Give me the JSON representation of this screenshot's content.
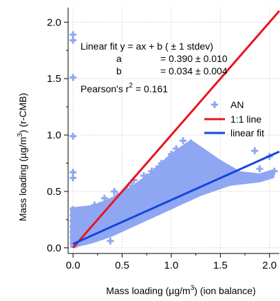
{
  "chart_data": {
    "type": "scatter",
    "xlabel_parts": [
      "Mass loading (µg/m",
      "3",
      ") (ion balance)"
    ],
    "ylabel_parts": [
      "Mass loading (µg/m",
      "3",
      ") (r-CMB)"
    ],
    "xlim": [
      -0.05,
      2.1
    ],
    "ylim": [
      -0.05,
      2.13
    ],
    "x_ticks": [
      0.0,
      0.5,
      1.0,
      1.5,
      2.0
    ],
    "x_tick_labels": [
      "0.0",
      "0.5",
      "1.0",
      "1.5",
      "2.0"
    ],
    "y_ticks": [
      0.0,
      0.5,
      1.0,
      1.5,
      2.0
    ],
    "y_tick_labels": [
      "0.0",
      "0.5",
      "1.0",
      "1.5",
      "2.0"
    ],
    "grid": true,
    "legend_position": "right",
    "annotation": {
      "line1": "Linear fit y = ax + b  ( ± 1 stdev)",
      "a_name": "a",
      "a_value": "= 0.390 ± 0.010",
      "b_name": "b",
      "b_value": "= 0.034 ± 0.004",
      "pearson_prefix": "Pearson's r",
      "pearson_sup": "2",
      "pearson_value": "=  0.161"
    },
    "series": [
      {
        "name": "AN",
        "kind": "scatter",
        "marker": "plus",
        "color": "#8fa6f2",
        "points": [
          [
            0.0,
            1.89
          ],
          [
            0.0,
            1.84
          ],
          [
            0.0,
            1.51
          ],
          [
            0.0,
            0.99
          ],
          [
            0.0,
            0.67
          ],
          [
            0.0,
            0.62
          ],
          [
            0.0,
            0.34
          ],
          [
            0.0,
            0.29
          ],
          [
            0.0,
            0.24
          ],
          [
            0.0,
            0.19
          ],
          [
            0.0,
            0.14
          ],
          [
            0.0,
            0.09
          ],
          [
            0.0,
            0.04
          ],
          [
            0.03,
            0.32
          ],
          [
            0.05,
            0.27
          ],
          [
            0.08,
            0.3
          ],
          [
            0.1,
            0.2
          ],
          [
            0.12,
            0.33
          ],
          [
            0.15,
            0.26
          ],
          [
            0.2,
            0.29
          ],
          [
            0.22,
            0.38
          ],
          [
            0.25,
            0.33
          ],
          [
            0.3,
            0.36
          ],
          [
            0.32,
            0.44
          ],
          [
            0.35,
            0.39
          ],
          [
            0.4,
            0.42
          ],
          [
            0.42,
            0.5
          ],
          [
            0.45,
            0.46
          ],
          [
            0.5,
            0.48
          ],
          [
            0.55,
            0.52
          ],
          [
            0.6,
            0.55
          ],
          [
            0.62,
            0.6
          ],
          [
            0.7,
            0.58
          ],
          [
            0.72,
            0.64
          ],
          [
            0.75,
            0.63
          ],
          [
            0.8,
            0.68
          ],
          [
            0.85,
            0.7
          ],
          [
            0.9,
            0.75
          ],
          [
            0.95,
            0.77
          ],
          [
            1.0,
            0.83
          ],
          [
            1.02,
            0.78
          ],
          [
            1.05,
            0.88
          ],
          [
            1.1,
            0.85
          ],
          [
            1.12,
            0.95
          ],
          [
            1.15,
            0.9
          ],
          [
            1.2,
            0.93
          ],
          [
            1.25,
            0.87
          ],
          [
            1.3,
            0.83
          ],
          [
            1.35,
            0.76
          ],
          [
            1.4,
            0.8
          ],
          [
            1.45,
            0.74
          ],
          [
            1.5,
            0.71
          ],
          [
            1.52,
            0.65
          ],
          [
            1.6,
            0.67
          ],
          [
            1.62,
            0.6
          ],
          [
            1.7,
            0.6
          ],
          [
            1.8,
            0.64
          ],
          [
            1.85,
            0.86
          ],
          [
            1.9,
            0.7
          ],
          [
            1.95,
            0.64
          ],
          [
            2.0,
            0.81
          ],
          [
            2.05,
            0.68
          ],
          [
            1.05,
            0.43
          ],
          [
            1.2,
            0.5
          ],
          [
            0.98,
            0.55
          ],
          [
            0.72,
            0.42
          ],
          [
            0.58,
            0.25
          ],
          [
            0.45,
            0.18
          ],
          [
            0.3,
            0.1
          ],
          [
            0.38,
            0.06
          ],
          [
            0.65,
            0.35
          ],
          [
            1.35,
            0.55
          ]
        ]
      },
      {
        "name": "1:1 line",
        "kind": "line",
        "color": "#e8141b",
        "points": [
          [
            0.0,
            0.0
          ],
          [
            2.1,
            2.1
          ]
        ]
      },
      {
        "name": "linear fit",
        "kind": "line",
        "color": "#1145dd",
        "slope": 0.39,
        "intercept": 0.034,
        "x_range": [
          0.0,
          2.1
        ]
      }
    ]
  }
}
